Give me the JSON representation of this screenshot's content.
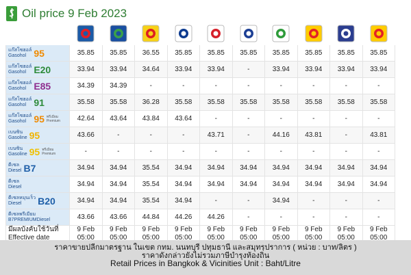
{
  "header": {
    "title": "Oil price 9 Feb 2023"
  },
  "table": {
    "rows": [
      {
        "thai": "แก๊สโซฮอล์",
        "en": "Gasohol",
        "code": "95",
        "code_color": "#f08a00",
        "prices": [
          35.85,
          35.85,
          36.55,
          35.85,
          35.85,
          35.85,
          35.85,
          35.85,
          35.85,
          35.85
        ]
      },
      {
        "thai": "แก๊สโซฮอล์",
        "en": "Gasohol",
        "code": "E20",
        "code_color": "#2e8b3a",
        "prices": [
          33.94,
          33.94,
          34.64,
          33.94,
          33.94,
          "-",
          33.94,
          33.94,
          33.94,
          33.94
        ]
      },
      {
        "thai": "แก๊สโซฮอล์",
        "en": "Gasohol",
        "code": "E85",
        "code_color": "#8e2d8e",
        "prices": [
          34.39,
          34.39,
          "-",
          "-",
          "-",
          "-",
          "-",
          "-",
          "-",
          "-"
        ]
      },
      {
        "thai": "แก๊สโซฮอล์",
        "en": "Gasohol",
        "code": "91",
        "code_color": "#2e8b3a",
        "prices": [
          35.58,
          35.58,
          36.28,
          35.58,
          35.58,
          35.58,
          35.58,
          35.58,
          35.58,
          35.58
        ]
      },
      {
        "thai": "แก๊สโซฮอล์",
        "en": "Gasohol",
        "code": "95",
        "note_th": "พรีเมียม",
        "note_en": "Premium",
        "code_color": "#f08a00",
        "prices": [
          42.64,
          43.64,
          43.84,
          43.64,
          "-",
          "-",
          "-",
          "-",
          "-",
          "-"
        ]
      },
      {
        "thai": "เบนซิน",
        "en": "Gasoline",
        "code": "95",
        "code_color": "#f0b400",
        "prices": [
          43.66,
          "-",
          "-",
          "-",
          43.71,
          "-",
          44.16,
          43.81,
          "-",
          43.81
        ]
      },
      {
        "thai": "เบนซิน",
        "en": "Gasoline",
        "code": "95",
        "note_th": "พรีเมียม",
        "note_en": "Premium",
        "code_color": "#f0c000",
        "prices": [
          "-",
          "-",
          "-",
          "-",
          "-",
          "-",
          "-",
          "-",
          "-",
          "-"
        ]
      },
      {
        "thai": "ดีเซล",
        "en": "Diesel",
        "code": "B7",
        "code_color": "#1f5fa8",
        "prices": [
          34.94,
          34.94,
          35.54,
          34.94,
          34.94,
          34.94,
          34.94,
          34.94,
          34.94,
          34.94
        ]
      },
      {
        "thai": "ดีเซล",
        "en": "Diesel",
        "prices": [
          34.94,
          34.94,
          35.54,
          34.94,
          34.94,
          34.94,
          34.94,
          34.94,
          34.94,
          34.94
        ]
      },
      {
        "thai": "ดีเซลหมุนเร็ว",
        "en": "Diesel",
        "code": "B20",
        "code_color": "#1f5fa8",
        "prices": [
          34.94,
          34.94,
          35.54,
          34.94,
          "-",
          "-",
          34.94,
          "-",
          "-",
          "-"
        ]
      },
      {
        "thai": "ดีเซลพรีเมียม",
        "en": "B7PREMIUMDiesel",
        "prices": [
          43.66,
          43.66,
          44.84,
          44.26,
          44.26,
          "-",
          "-",
          "-",
          "-",
          "-"
        ]
      }
    ],
    "effective": {
      "label_th": "มีผลบังคับใช้วันที่",
      "label_en": "Effective date",
      "cells": [
        [
          "9 Feb",
          "05:00"
        ],
        [
          "9 Feb",
          "05:00"
        ],
        [
          "9 Feb",
          "05:00"
        ],
        [
          "9 Feb",
          "05:00"
        ],
        [
          "9 Feb",
          "05:00"
        ],
        [
          "9 Feb",
          "05:00"
        ],
        [
          "9 Feb",
          "05:00"
        ],
        [
          "9 Feb",
          "05:00"
        ],
        [
          "9 Feb",
          "05:00"
        ],
        [
          "9 Feb",
          "05:00"
        ]
      ]
    }
  },
  "footer": {
    "line1": "ราคาขายปลีกมาตรฐาน ในเขต กทม. นนทบุรี ปทุมธานี และสมุทรปราการ ( หน่วย : บาท/ลิตร )",
    "line2": "ราคาดังกล่าวยังไม่รวมภาษีบำรุงท้องถิ่น",
    "line3": "Retail Prices in Bangkok & Vicinities Unit : Baht/Litre"
  }
}
